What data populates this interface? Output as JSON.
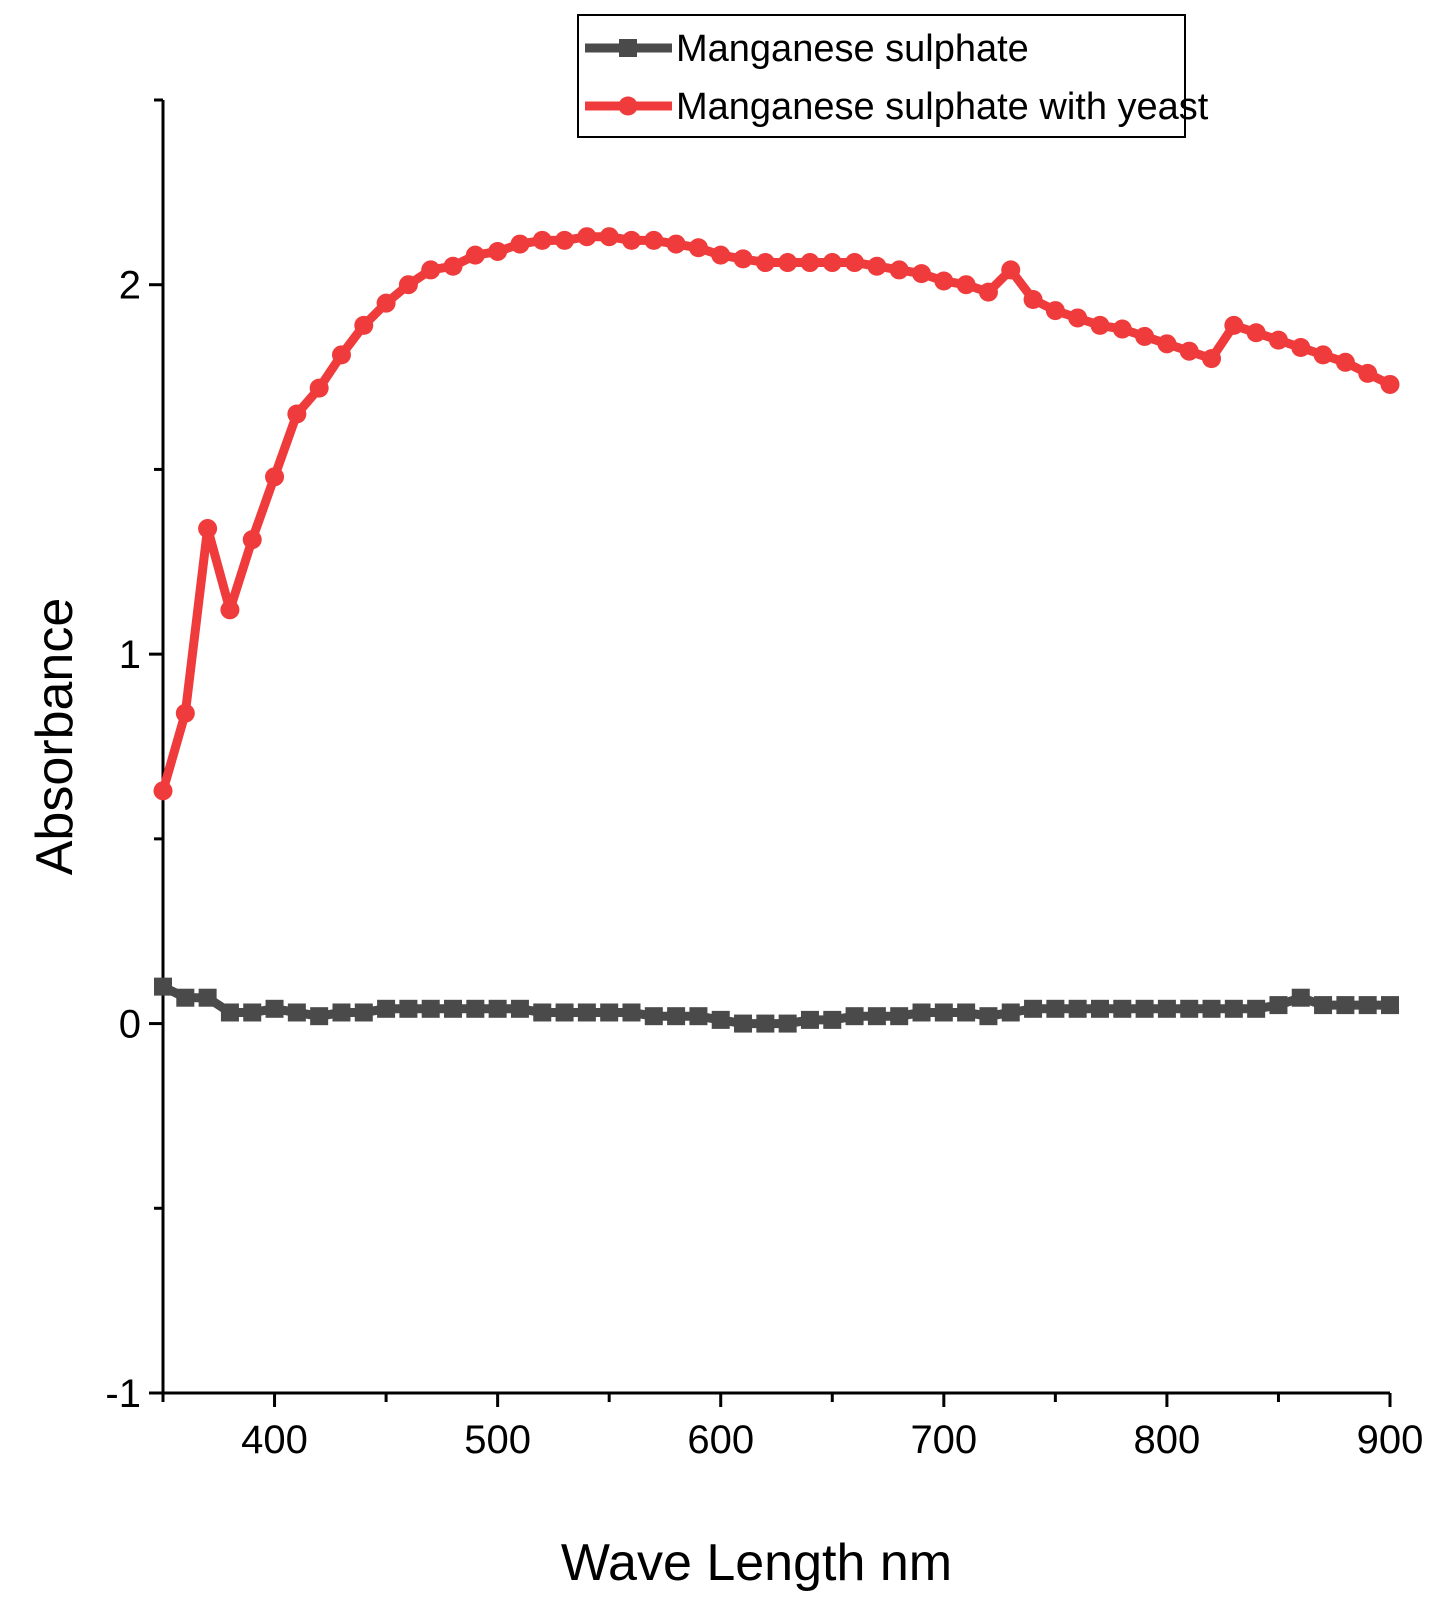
{
  "chart_data": {
    "type": "line",
    "title": "",
    "xlabel": "Wave Length nm",
    "ylabel": "Absorbance",
    "xlim": [
      350,
      900
    ],
    "ylim": [
      -1,
      2.5
    ],
    "xticks": [
      400,
      500,
      600,
      700,
      800,
      900
    ],
    "xtick_labels": [
      "400",
      "500",
      "600",
      "700",
      "800",
      "900"
    ],
    "yticks": [
      -1,
      0,
      1,
      2
    ],
    "ytick_labels": [
      "-1",
      "0",
      "1",
      "2"
    ],
    "grid": false,
    "legend": {
      "position": "top-right"
    },
    "x": [
      350,
      360,
      370,
      380,
      390,
      400,
      410,
      420,
      430,
      440,
      450,
      460,
      470,
      480,
      490,
      500,
      510,
      520,
      530,
      540,
      550,
      560,
      570,
      580,
      590,
      600,
      610,
      620,
      630,
      640,
      650,
      660,
      670,
      680,
      690,
      700,
      710,
      720,
      730,
      740,
      750,
      760,
      770,
      780,
      790,
      800,
      810,
      820,
      830,
      840,
      850,
      860,
      870,
      880,
      890,
      900
    ],
    "series": [
      {
        "name": "Manganese sulphate",
        "color": "#4a4a4a",
        "marker": "square",
        "values": [
          0.1,
          0.07,
          0.07,
          0.03,
          0.03,
          0.04,
          0.03,
          0.02,
          0.03,
          0.03,
          0.04,
          0.04,
          0.04,
          0.04,
          0.04,
          0.04,
          0.04,
          0.03,
          0.03,
          0.03,
          0.03,
          0.03,
          0.02,
          0.02,
          0.02,
          0.01,
          0.0,
          0.0,
          0.0,
          0.01,
          0.01,
          0.02,
          0.02,
          0.02,
          0.03,
          0.03,
          0.03,
          0.02,
          0.03,
          0.04,
          0.04,
          0.04,
          0.04,
          0.04,
          0.04,
          0.04,
          0.04,
          0.04,
          0.04,
          0.04,
          0.05,
          0.07,
          0.05,
          0.05,
          0.05,
          0.05
        ]
      },
      {
        "name": "Manganese sulphate with yeast",
        "color": "#ef3b3b",
        "marker": "circle",
        "values": [
          0.63,
          0.84,
          1.34,
          1.12,
          1.31,
          1.48,
          1.65,
          1.72,
          1.81,
          1.89,
          1.95,
          2.0,
          2.04,
          2.05,
          2.08,
          2.09,
          2.11,
          2.12,
          2.12,
          2.13,
          2.13,
          2.12,
          2.12,
          2.11,
          2.1,
          2.08,
          2.07,
          2.06,
          2.06,
          2.06,
          2.06,
          2.06,
          2.05,
          2.04,
          2.03,
          2.01,
          2.0,
          1.98,
          2.04,
          1.96,
          1.93,
          1.91,
          1.89,
          1.88,
          1.86,
          1.84,
          1.82,
          1.8,
          1.89,
          1.87,
          1.85,
          1.83,
          1.81,
          1.79,
          1.76,
          1.73
        ]
      }
    ]
  }
}
